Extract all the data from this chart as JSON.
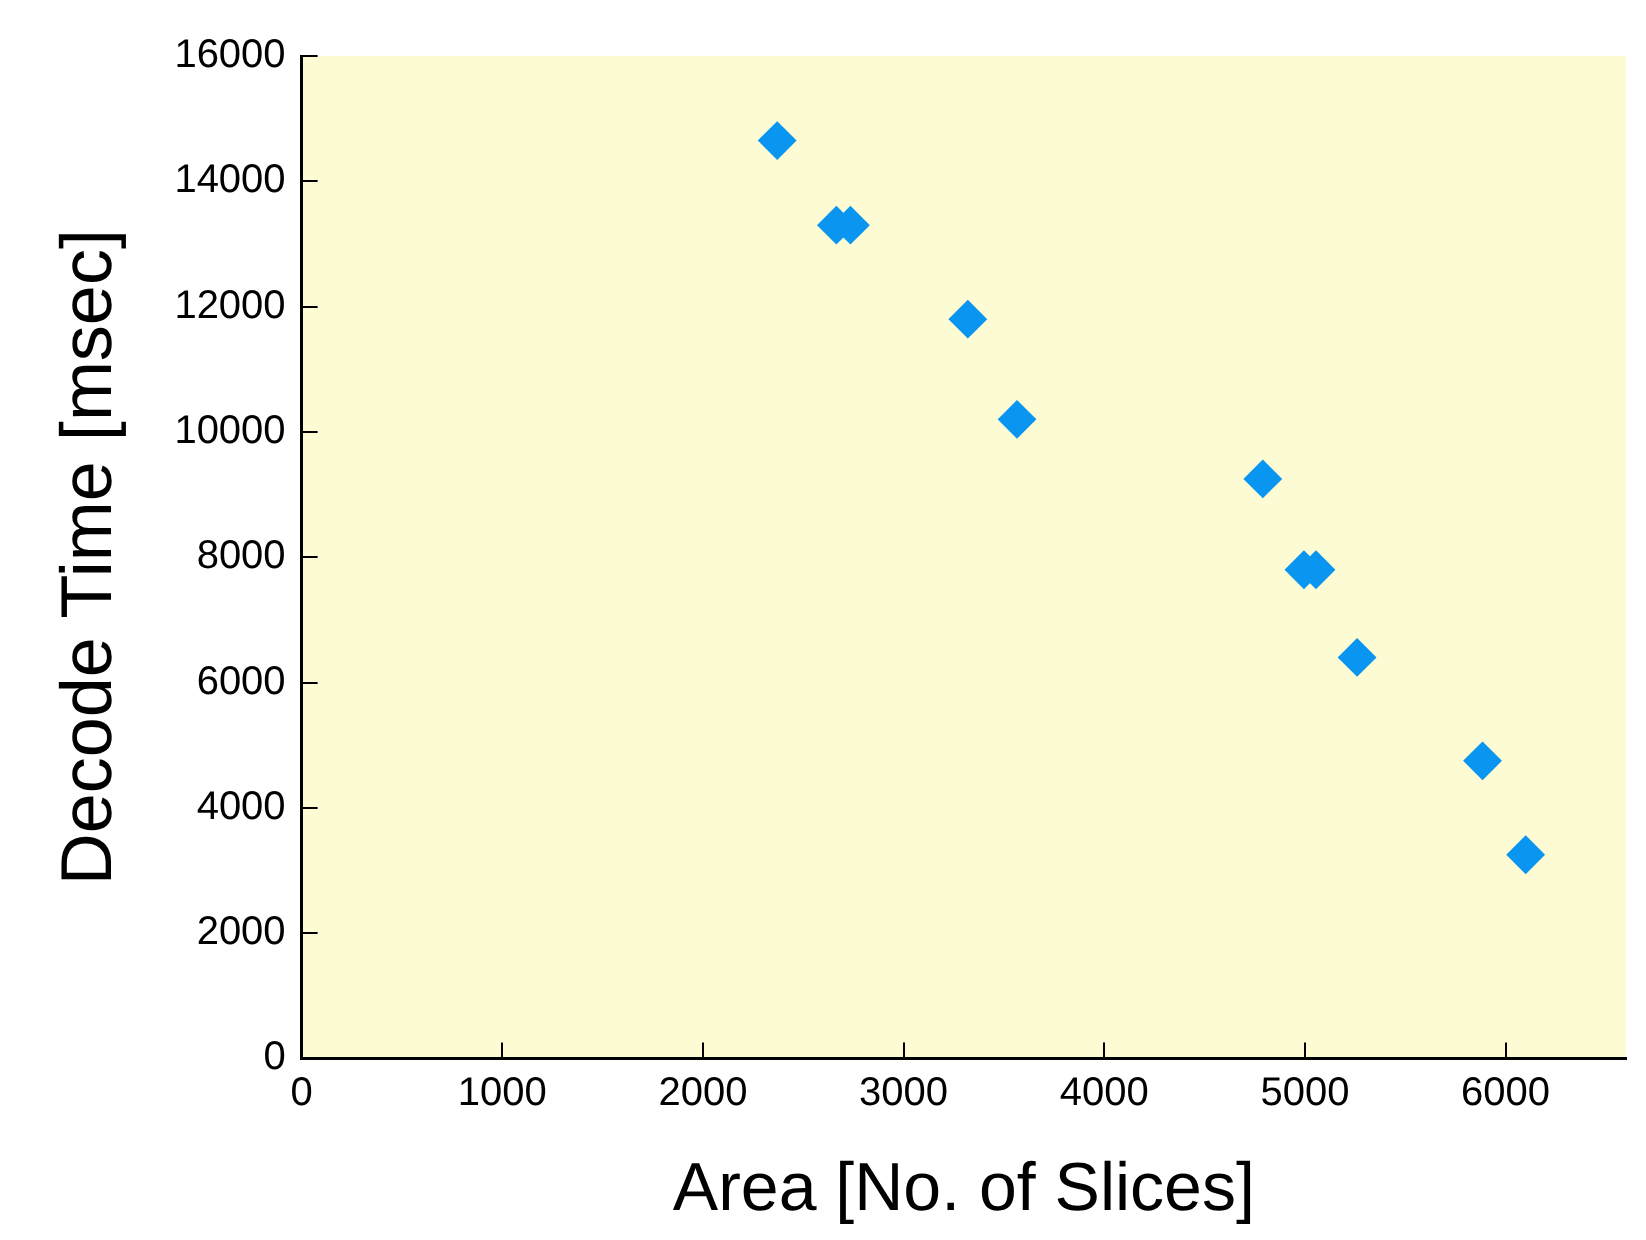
{
  "chart_data": {
    "type": "scatter",
    "xlabel": "Area [No. of Slices]",
    "ylabel": "Decode Time [msec]",
    "x": [
      2370,
      2665,
      2735,
      3320,
      3565,
      4790,
      4995,
      5055,
      5260,
      5885,
      6100
    ],
    "values": [
      14650,
      13300,
      13300,
      11800,
      10200,
      9250,
      7800,
      7800,
      6400,
      4750,
      3250
    ],
    "color": "#0a96f0",
    "marker": "diamond",
    "xlim": [
      0,
      6600
    ],
    "xticks": [
      0,
      1000,
      2000,
      3000,
      4000,
      5000,
      6000
    ],
    "ylim": [
      0,
      16000
    ],
    "yticks": [
      0,
      2000,
      4000,
      6000,
      8000,
      10000,
      12000,
      14000,
      16000
    ],
    "grid": false,
    "legend": false
  }
}
